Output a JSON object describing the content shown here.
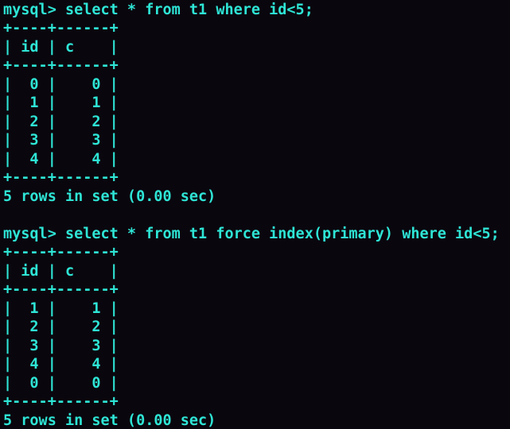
{
  "terminal": {
    "colors": {
      "background": "#0a060e",
      "foreground": "#2ee5d5"
    },
    "blocks": [
      {
        "prompt": "mysql> ",
        "command": "select * from t1 where id<5;",
        "table": {
          "columns": [
            "id",
            "c"
          ],
          "rows": [
            [
              0,
              0
            ],
            [
              1,
              1
            ],
            [
              2,
              2
            ],
            [
              3,
              3
            ],
            [
              4,
              4
            ]
          ],
          "ascii": "+----+------+\n| id | c    |\n+----+------+\n|  0 |    0 |\n|  1 |    1 |\n|  2 |    2 |\n|  3 |    3 |\n|  4 |    4 |\n+----+------+"
        },
        "status": "5 rows in set (0.00 sec)"
      },
      {
        "prompt": "mysql> ",
        "command": "select * from t1 force index(primary) where id<5;",
        "table": {
          "columns": [
            "id",
            "c"
          ],
          "rows": [
            [
              1,
              1
            ],
            [
              2,
              2
            ],
            [
              3,
              3
            ],
            [
              4,
              4
            ],
            [
              0,
              0
            ]
          ],
          "ascii": "+----+------+\n| id | c    |\n+----+------+\n|  1 |    1 |\n|  2 |    2 |\n|  3 |    3 |\n|  4 |    4 |\n|  0 |    0 |\n+----+------+"
        },
        "status": "5 rows in set (0.00 sec)"
      }
    ]
  }
}
